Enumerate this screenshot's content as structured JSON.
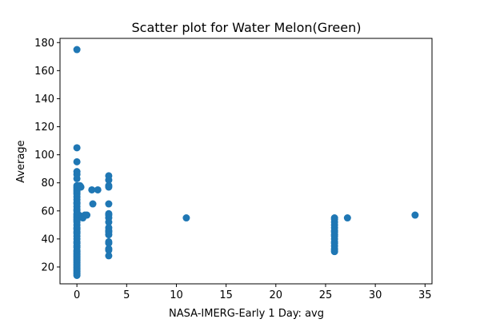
{
  "chart_data": {
    "type": "scatter",
    "title": "Scatter plot for Water Melon(Green)",
    "xlabel": "NASA-IMERG-Early 1 Day: avg",
    "ylabel": "Average",
    "xlim": [
      -1.7,
      35.7
    ],
    "ylim": [
      8,
      183
    ],
    "xticks": [
      0,
      5,
      10,
      15,
      20,
      25,
      30,
      35
    ],
    "yticks": [
      20,
      40,
      60,
      80,
      100,
      120,
      140,
      160,
      180
    ],
    "grid": false,
    "marker_color": "#1f77b4",
    "points": [
      [
        0,
        175
      ],
      [
        0,
        105
      ],
      [
        0,
        95
      ],
      [
        0,
        88
      ],
      [
        0,
        86
      ],
      [
        0,
        83
      ],
      [
        0,
        78
      ],
      [
        0,
        77
      ],
      [
        0,
        76
      ],
      [
        0,
        75
      ],
      [
        0,
        74
      ],
      [
        0,
        73
      ],
      [
        0,
        72
      ],
      [
        0,
        70
      ],
      [
        0,
        68
      ],
      [
        0,
        66
      ],
      [
        0,
        65
      ],
      [
        0,
        63
      ],
      [
        0,
        61
      ],
      [
        0,
        60
      ],
      [
        0,
        58
      ],
      [
        0,
        57
      ],
      [
        0,
        56
      ],
      [
        0,
        55
      ],
      [
        0,
        54
      ],
      [
        0,
        53
      ],
      [
        0,
        52
      ],
      [
        0,
        50
      ],
      [
        0,
        48
      ],
      [
        0,
        47
      ],
      [
        0,
        45
      ],
      [
        0,
        44
      ],
      [
        0,
        42
      ],
      [
        0,
        40
      ],
      [
        0,
        38
      ],
      [
        0,
        37
      ],
      [
        0,
        35
      ],
      [
        0,
        34
      ],
      [
        0,
        32
      ],
      [
        0,
        31
      ],
      [
        0,
        30
      ],
      [
        0,
        29
      ],
      [
        0,
        28
      ],
      [
        0,
        27
      ],
      [
        0,
        26
      ],
      [
        0,
        25
      ],
      [
        0,
        24
      ],
      [
        0,
        23
      ],
      [
        0,
        22
      ],
      [
        0,
        21
      ],
      [
        0,
        20
      ],
      [
        0,
        19
      ],
      [
        0,
        18
      ],
      [
        0,
        17
      ],
      [
        0,
        16
      ],
      [
        0,
        15
      ],
      [
        0,
        14
      ],
      [
        0.1,
        55
      ],
      [
        0.2,
        57
      ],
      [
        0.3,
        78
      ],
      [
        0.4,
        77
      ],
      [
        0.5,
        56
      ],
      [
        0.6,
        55
      ],
      [
        0.8,
        57
      ],
      [
        1.0,
        57
      ],
      [
        1.5,
        75
      ],
      [
        1.6,
        65
      ],
      [
        2.1,
        75
      ],
      [
        3.2,
        85
      ],
      [
        3.2,
        82
      ],
      [
        3.2,
        78
      ],
      [
        3.2,
        77
      ],
      [
        3.2,
        65
      ],
      [
        3.2,
        58
      ],
      [
        3.2,
        57
      ],
      [
        3.2,
        55
      ],
      [
        3.2,
        52
      ],
      [
        3.2,
        48
      ],
      [
        3.2,
        46
      ],
      [
        3.2,
        45
      ],
      [
        3.2,
        43
      ],
      [
        3.2,
        38
      ],
      [
        3.2,
        37
      ],
      [
        3.2,
        33
      ],
      [
        3.2,
        32
      ],
      [
        3.2,
        28
      ],
      [
        11,
        55
      ],
      [
        25.9,
        55
      ],
      [
        25.9,
        54
      ],
      [
        25.9,
        52
      ],
      [
        25.9,
        50
      ],
      [
        25.9,
        48
      ],
      [
        25.9,
        46
      ],
      [
        25.9,
        45
      ],
      [
        25.9,
        43
      ],
      [
        25.9,
        42
      ],
      [
        25.9,
        40
      ],
      [
        25.9,
        38
      ],
      [
        25.9,
        37
      ],
      [
        25.9,
        35
      ],
      [
        25.9,
        33
      ],
      [
        25.9,
        32
      ],
      [
        25.9,
        31
      ],
      [
        27.2,
        55
      ],
      [
        34,
        57
      ]
    ]
  }
}
